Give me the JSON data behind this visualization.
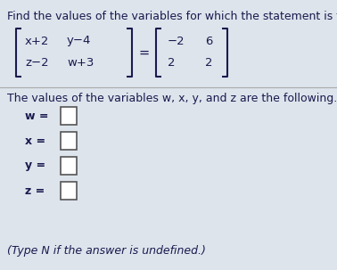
{
  "title": "Find the values of the variables for which the statement is true,",
  "separator_text": "The values of the variables w, x, y, and z are the following.",
  "variables": [
    "w",
    "x",
    "y",
    "z"
  ],
  "footer": "(Type N if the answer is undefined.)",
  "bg_color": "#dde4ec",
  "text_color": "#1a1a4e",
  "title_fontsize": 9.0,
  "body_fontsize": 9.0,
  "mat_fs": 9.5,
  "lm_row1_col1": "x+2",
  "lm_row1_col2": "y−4",
  "lm_row2_col1": "z−2",
  "lm_row2_col2": "w+3",
  "rm_row1_col1": "−2",
  "rm_row1_col2": "6",
  "rm_row2_col1": "2",
  "rm_row2_col2": "2"
}
